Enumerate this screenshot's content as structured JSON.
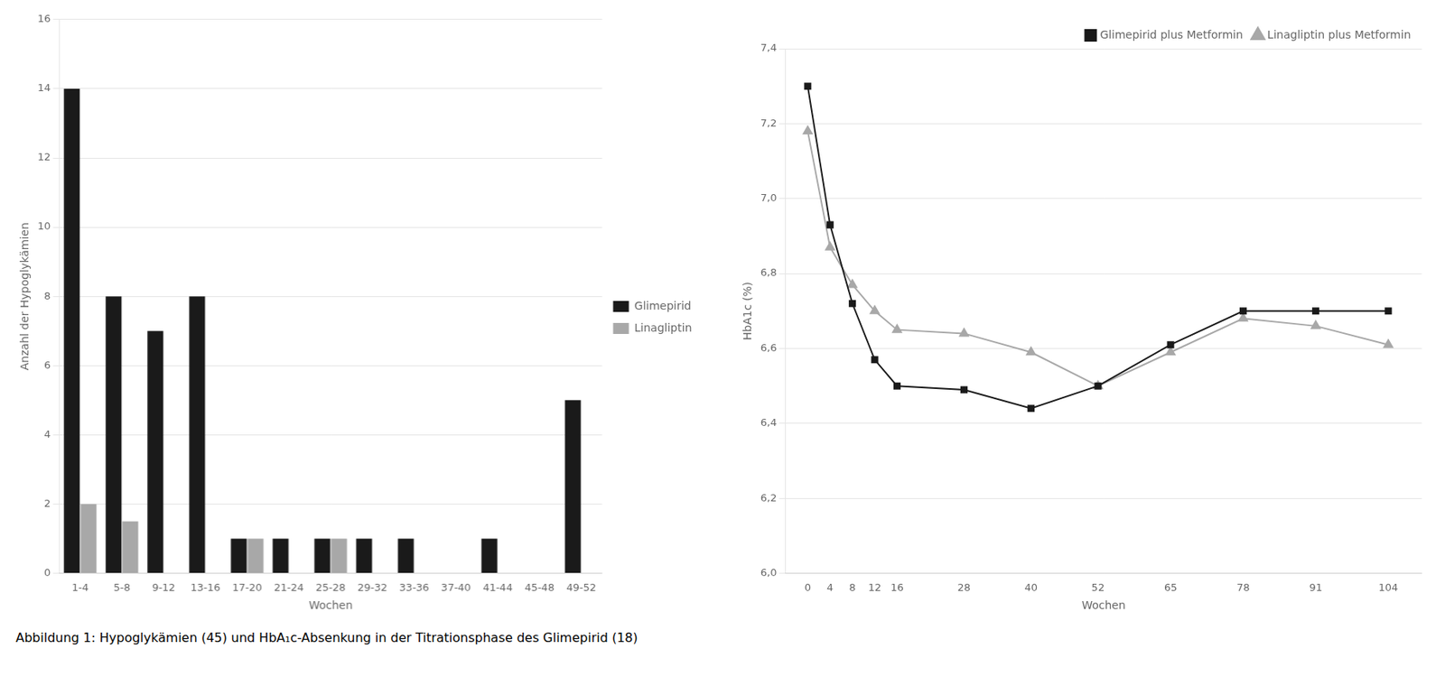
{
  "caption": "Abbildung 1: Hypoglykämien (45) und HbA₁ᴄ-Absenkung in der Titrationsphase des Glimepirid (18)",
  "chart_data": [
    {
      "type": "bar",
      "categories": [
        "1-4",
        "5-8",
        "9-12",
        "13-16",
        "17-20",
        "21-24",
        "25-28",
        "29-32",
        "33-36",
        "37-40",
        "41-44",
        "45-48",
        "49-52"
      ],
      "series": [
        {
          "name": "Glimepirid",
          "color": "#1a1a1a",
          "values": [
            14,
            8,
            7,
            8,
            1,
            1,
            1,
            1,
            1,
            0,
            1,
            0,
            5
          ]
        },
        {
          "name": "Linagliptin",
          "color": "#a8a8a8",
          "values": [
            2,
            1.5,
            0,
            0,
            1,
            0,
            1,
            0,
            0,
            0,
            0,
            0,
            0
          ]
        }
      ],
      "xlabel": "Wochen",
      "ylabel": "Anzahl der Hypoglykämien",
      "ylim": [
        0,
        16
      ],
      "yticks": [
        0,
        2,
        4,
        6,
        8,
        10,
        12,
        14,
        16
      ],
      "grid": "y",
      "legend": "right"
    },
    {
      "type": "line",
      "x": [
        0,
        4,
        8,
        12,
        16,
        28,
        40,
        52,
        65,
        78,
        91,
        104
      ],
      "series": [
        {
          "name": "Glimepirid plus Metformin",
          "color": "#1a1a1a",
          "marker": "square",
          "line_style": "solid",
          "values": [
            7.3,
            6.93,
            6.72,
            6.57,
            6.5,
            6.49,
            6.44,
            6.5,
            6.61,
            6.7,
            6.7,
            6.7
          ]
        },
        {
          "name": "Linagliptin plus Metformin",
          "color": "#a8a8a8",
          "marker": "triangle",
          "line_style": "solid",
          "values": [
            7.18,
            6.87,
            6.77,
            6.7,
            6.65,
            6.64,
            6.59,
            6.5,
            6.59,
            6.68,
            6.66,
            6.61
          ]
        }
      ],
      "xlabel": "Wochen",
      "ylabel": "HbA1c (%)",
      "xlim": [
        -4,
        110
      ],
      "xticks": [
        0,
        4,
        8,
        12,
        16,
        28,
        40,
        52,
        65,
        78,
        91,
        104
      ],
      "ylim": [
        6.0,
        7.4
      ],
      "yticks": [
        {
          "value": 6.0,
          "label": "6,0"
        },
        {
          "value": 6.2,
          "label": "6,2"
        },
        {
          "value": 6.4,
          "label": "6,4"
        },
        {
          "value": 6.6,
          "label": "6,6"
        },
        {
          "value": 6.8,
          "label": "6,8"
        },
        {
          "value": 7.0,
          "label": "7,0"
        },
        {
          "value": 7.2,
          "label": "7,2"
        },
        {
          "value": 7.4,
          "label": "7,4"
        }
      ],
      "grid": "y",
      "legend": "upper right"
    }
  ]
}
